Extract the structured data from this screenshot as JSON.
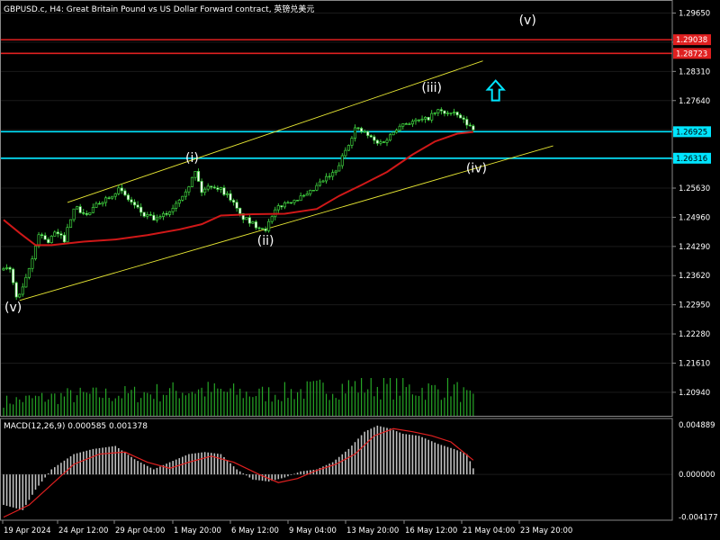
{
  "header": {
    "title": "GBPUSD.c, H4:  Great Britain Pound vs US Dollar Forward contract, 英镑兑美元"
  },
  "macd_panel": {
    "title": "MACD(12,26,9) 0.000585 0.001378",
    "axis_ticks": [
      "0.004889",
      "0.000000",
      "-0.004177"
    ]
  },
  "chart_data": {
    "type": "candlestick",
    "symbol": "GBPUSD.c",
    "timeframe": "H4",
    "y_axis_ticks": [
      1.2965,
      1.2898,
      1.2831,
      1.2764,
      1.2697,
      1.263,
      1.2563,
      1.2496,
      1.2429,
      1.2362,
      1.2295,
      1.2228,
      1.2161,
      1.2094
    ],
    "ylim": [
      1.204,
      1.2995
    ],
    "x_axis_ticks": [
      "19 Apr 2024",
      "24 Apr 12:00",
      "29 Apr 04:00",
      "1 May 20:00",
      "6 May 12:00",
      "9 May 04:00",
      "13 May 20:00",
      "16 May 12:00",
      "21 May 04:00",
      "23 May 20:00"
    ],
    "price_tags": [
      {
        "value": "1.29038",
        "color": "#e02020",
        "kind": "resistance"
      },
      {
        "value": "1.28723",
        "color": "#e02020",
        "kind": "resistance"
      },
      {
        "value": "1.26925",
        "color": "#00e5ff",
        "kind": "level"
      },
      {
        "value": "1.26316",
        "color": "#00e5ff",
        "kind": "level"
      }
    ],
    "horizontal_lines": [
      {
        "value": 1.29038,
        "color": "#e02020"
      },
      {
        "value": 1.28723,
        "color": "#e02020"
      },
      {
        "value": 1.26925,
        "color": "#00e5ff"
      },
      {
        "value": 1.26316,
        "color": "#00e5ff"
      }
    ],
    "wave_labels": [
      {
        "text": "(v)",
        "bar": 3,
        "price": 1.229
      },
      {
        "text": "(i)",
        "bar": 59,
        "price": 1.2633
      },
      {
        "text": "(ii)",
        "bar": 82,
        "price": 1.2443
      },
      {
        "text": "(iii)",
        "bar": 134,
        "price": 1.2795
      },
      {
        "text": "(iv)",
        "bar": 148,
        "price": 1.2609
      },
      {
        "text": "(v)",
        "bar": 164,
        "price": 1.295
      }
    ],
    "channel_lines": [
      {
        "from": {
          "bar": 5,
          "price": 1.2305
        },
        "to": {
          "bar": 172,
          "price": 1.266
        }
      },
      {
        "from": {
          "bar": 20,
          "price": 1.253
        },
        "to": {
          "bar": 150,
          "price": 1.2855
        }
      }
    ],
    "up_arrow": {
      "bar": 154,
      "price": 1.2785,
      "color": "#00e5ff"
    },
    "moving_average": {
      "color": "#d01818",
      "points": [
        [
          0,
          1.249
        ],
        [
          5,
          1.246
        ],
        [
          10,
          1.2432
        ],
        [
          15,
          1.2432
        ],
        [
          25,
          1.244
        ],
        [
          35,
          1.2445
        ],
        [
          45,
          1.2455
        ],
        [
          55,
          1.2468
        ],
        [
          62,
          1.248
        ],
        [
          68,
          1.25
        ],
        [
          78,
          1.2503
        ],
        [
          88,
          1.2504
        ],
        [
          98,
          1.2515
        ],
        [
          105,
          1.2545
        ],
        [
          112,
          1.257
        ],
        [
          120,
          1.26
        ],
        [
          128,
          1.264
        ],
        [
          135,
          1.267
        ],
        [
          142,
          1.2688
        ],
        [
          147,
          1.2692
        ]
      ]
    },
    "price_path": [
      [
        0,
        1.2375
      ],
      [
        2,
        1.238
      ],
      [
        4,
        1.231
      ],
      [
        6,
        1.233
      ],
      [
        9,
        1.24
      ],
      [
        11,
        1.246
      ],
      [
        14,
        1.244
      ],
      [
        16,
        1.246
      ],
      [
        19,
        1.2445
      ],
      [
        22,
        1.252
      ],
      [
        26,
        1.25
      ],
      [
        30,
        1.253
      ],
      [
        36,
        1.256
      ],
      [
        40,
        1.253
      ],
      [
        44,
        1.25
      ],
      [
        48,
        1.249
      ],
      [
        52,
        1.251
      ],
      [
        55,
        1.254
      ],
      [
        58,
        1.257
      ],
      [
        60,
        1.26
      ],
      [
        62,
        1.2555
      ],
      [
        65,
        1.257
      ],
      [
        68,
        1.256
      ],
      [
        71,
        1.254
      ],
      [
        74,
        1.25
      ],
      [
        78,
        1.248
      ],
      [
        82,
        1.247
      ],
      [
        86,
        1.252
      ],
      [
        90,
        1.2535
      ],
      [
        95,
        1.2545
      ],
      [
        100,
        1.258
      ],
      [
        104,
        1.26
      ],
      [
        107,
        1.265
      ],
      [
        110,
        1.27
      ],
      [
        113,
        1.269
      ],
      [
        117,
        1.2665
      ],
      [
        120,
        1.2675
      ],
      [
        124,
        1.271
      ],
      [
        128,
        1.2715
      ],
      [
        132,
        1.272
      ],
      [
        136,
        1.274
      ],
      [
        139,
        1.2735
      ],
      [
        142,
        1.273
      ],
      [
        145,
        1.271
      ],
      [
        147,
        1.27
      ]
    ],
    "volume_path": [
      [
        0,
        20
      ],
      [
        20,
        28
      ],
      [
        40,
        30
      ],
      [
        60,
        36
      ],
      [
        80,
        30
      ],
      [
        95,
        35
      ],
      [
        105,
        40
      ],
      [
        112,
        42
      ],
      [
        125,
        38
      ],
      [
        135,
        36
      ],
      [
        140,
        40
      ],
      [
        147,
        22
      ]
    ],
    "macd": {
      "histogram": [
        [
          0,
          -0.003
        ],
        [
          6,
          -0.0035
        ],
        [
          10,
          -0.0015
        ],
        [
          15,
          0.0005
        ],
        [
          22,
          0.002
        ],
        [
          28,
          0.0025
        ],
        [
          35,
          0.0028
        ],
        [
          41,
          0.0015
        ],
        [
          47,
          0.0005
        ],
        [
          52,
          0.0012
        ],
        [
          58,
          0.002
        ],
        [
          63,
          0.0022
        ],
        [
          68,
          0.002
        ],
        [
          73,
          0.0005
        ],
        [
          78,
          -0.0005
        ],
        [
          83,
          -0.0007
        ],
        [
          88,
          -0.0003
        ],
        [
          93,
          0.0003
        ],
        [
          98,
          0.0005
        ],
        [
          103,
          0.0012
        ],
        [
          108,
          0.0025
        ],
        [
          113,
          0.0042
        ],
        [
          117,
          0.0048
        ],
        [
          121,
          0.0045
        ],
        [
          125,
          0.004
        ],
        [
          130,
          0.0038
        ],
        [
          136,
          0.003
        ],
        [
          141,
          0.0025
        ],
        [
          145,
          0.002
        ],
        [
          147,
          0.0006
        ]
      ],
      "signal": [
        [
          0,
          -0.0042
        ],
        [
          8,
          -0.003
        ],
        [
          15,
          -0.001
        ],
        [
          22,
          0.001
        ],
        [
          30,
          0.002
        ],
        [
          38,
          0.0022
        ],
        [
          45,
          0.0012
        ],
        [
          52,
          0.0006
        ],
        [
          58,
          0.0012
        ],
        [
          65,
          0.0018
        ],
        [
          72,
          0.0012
        ],
        [
          80,
          0.0
        ],
        [
          86,
          -0.0008
        ],
        [
          92,
          -0.0004
        ],
        [
          98,
          0.0004
        ],
        [
          104,
          0.001
        ],
        [
          110,
          0.002
        ],
        [
          116,
          0.0038
        ],
        [
          122,
          0.0045
        ],
        [
          128,
          0.0042
        ],
        [
          134,
          0.0038
        ],
        [
          140,
          0.0032
        ],
        [
          147,
          0.0014
        ]
      ],
      "ylim": [
        -0.0045,
        0.0055
      ]
    }
  }
}
